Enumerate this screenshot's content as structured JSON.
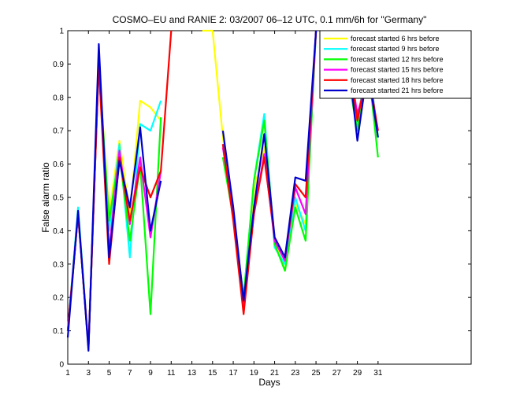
{
  "chart_data": {
    "type": "line",
    "title": "COSMO–EU and RANIE 2: 03/2007 06–12 UTC, 0.1 mm/6h for \"Germany\"",
    "xlabel": "Days",
    "ylabel": "False alarm ratio",
    "xlim": [
      1,
      40
    ],
    "ylim": [
      0,
      1
    ],
    "xticks": [
      1,
      3,
      5,
      7,
      9,
      11,
      13,
      15,
      17,
      19,
      21,
      23,
      25,
      27,
      29,
      31
    ],
    "yticks": [
      0,
      0.1,
      0.2,
      0.3,
      0.4,
      0.5,
      0.6,
      0.7,
      0.8,
      0.9,
      1
    ],
    "ytick_labels": [
      "0",
      "0.1",
      "0.2",
      "0.3",
      "0.4",
      "0.5",
      "0.6",
      "0.7",
      "0.8",
      "0.9",
      "1"
    ],
    "legend_position": "top-right",
    "x": [
      1,
      2,
      3,
      4,
      5,
      6,
      7,
      8,
      9,
      10,
      11,
      12,
      13,
      14,
      15,
      16,
      17,
      18,
      19,
      20,
      21,
      22,
      23,
      24,
      25,
      26,
      27,
      28,
      29,
      30,
      31
    ],
    "series": [
      {
        "name": "forecast started 6 hrs before",
        "color": "#ffff00",
        "values": [
          0.1,
          0.45,
          0.05,
          0.9,
          0.45,
          0.67,
          0.45,
          0.79,
          0.77,
          0.73,
          null,
          null,
          null,
          1.0,
          1.0,
          0.68,
          0.45,
          0.17,
          0.52,
          0.65,
          0.37,
          0.28,
          0.48,
          0.42,
          1.0,
          null,
          1.0,
          0.92,
          0.72,
          0.93,
          0.68
        ]
      },
      {
        "name": "forecast started 9 hrs before",
        "color": "#00ffff",
        "values": [
          0.1,
          0.47,
          0.05,
          0.9,
          0.4,
          0.66,
          0.32,
          0.72,
          0.7,
          0.79,
          null,
          null,
          null,
          null,
          null,
          0.66,
          0.45,
          0.2,
          0.55,
          0.75,
          0.35,
          0.3,
          0.5,
          0.4,
          1.0,
          null,
          1.0,
          0.9,
          0.72,
          0.93,
          0.68
        ]
      },
      {
        "name": "forecast started 12 hrs before",
        "color": "#00ff00",
        "values": [
          0.1,
          0.45,
          0.05,
          0.9,
          0.43,
          0.63,
          0.37,
          0.6,
          0.15,
          0.74,
          null,
          null,
          null,
          null,
          null,
          0.62,
          0.44,
          0.2,
          0.55,
          0.73,
          0.36,
          0.28,
          0.47,
          0.37,
          1.0,
          null,
          1.0,
          0.88,
          0.7,
          0.91,
          0.62
        ]
      },
      {
        "name": "forecast started 15 hrs before",
        "color": "#ff00ff",
        "values": [
          0.1,
          0.45,
          0.05,
          0.9,
          0.34,
          0.64,
          0.42,
          0.62,
          0.38,
          0.58,
          null,
          null,
          null,
          null,
          null,
          0.65,
          0.45,
          0.17,
          0.45,
          0.63,
          0.37,
          0.31,
          0.53,
          0.45,
          1.0,
          null,
          1.0,
          0.94,
          0.75,
          0.86,
          0.7
        ]
      },
      {
        "name": "forecast started 18 hrs before",
        "color": "#ff0000",
        "values": [
          0.1,
          0.45,
          0.05,
          0.9,
          0.3,
          0.62,
          0.43,
          0.59,
          0.5,
          0.58,
          1.0,
          null,
          null,
          null,
          null,
          0.66,
          0.43,
          0.15,
          0.45,
          0.62,
          0.38,
          0.32,
          0.54,
          0.5,
          1.0,
          null,
          1.0,
          0.95,
          0.73,
          0.89,
          0.7
        ]
      },
      {
        "name": "forecast started 21 hrs before",
        "color": "#0000cc",
        "values": [
          0.08,
          0.46,
          0.04,
          0.96,
          0.32,
          0.61,
          0.47,
          0.71,
          0.4,
          0.55,
          null,
          null,
          null,
          null,
          null,
          0.7,
          0.47,
          0.19,
          0.47,
          0.69,
          0.38,
          0.32,
          0.56,
          0.55,
          1.0,
          null,
          1.0,
          0.95,
          0.67,
          0.89,
          0.68
        ]
      }
    ]
  }
}
